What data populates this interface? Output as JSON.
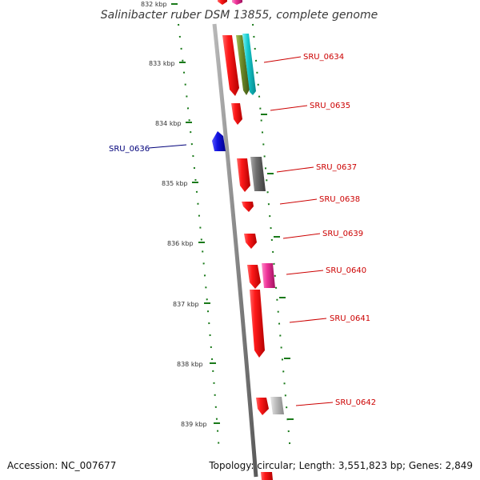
{
  "title": "Salinibacter ruber DSM 13855, complete genome",
  "top_cut_label": "832 kbp",
  "ticks": [
    "833 kbp",
    "834 kbp",
    "835 kbp",
    "836 kbp",
    "837 kbp",
    "838 kbp",
    "839 kbp"
  ],
  "genes": {
    "forward": [
      "SRU_0634",
      "SRU_0635",
      "SRU_0637",
      "SRU_0638",
      "SRU_0639",
      "SRU_0640",
      "SRU_0641",
      "SRU_0642"
    ],
    "reverse": [
      "SRU_0636"
    ]
  },
  "footer": {
    "accession": "Accession: NC_007677",
    "summary": "Topology: circular; Length: 3,551,823 bp; Genes: 2,849"
  },
  "colors": {
    "backbone": "#8a8a8a",
    "tick": "#1a7a1a",
    "forward_label": "#cc0000",
    "reverse_label": "#00007a",
    "gene_red": "#ee1111",
    "gene_blue": "#1111dd",
    "gene_olive": "#6f8c2a",
    "gene_cyan": "#14c8cc",
    "gene_magenta": "#ee3399",
    "gene_gray": "#6e6e6e",
    "gene_lightgray": "#bdbdbd"
  }
}
